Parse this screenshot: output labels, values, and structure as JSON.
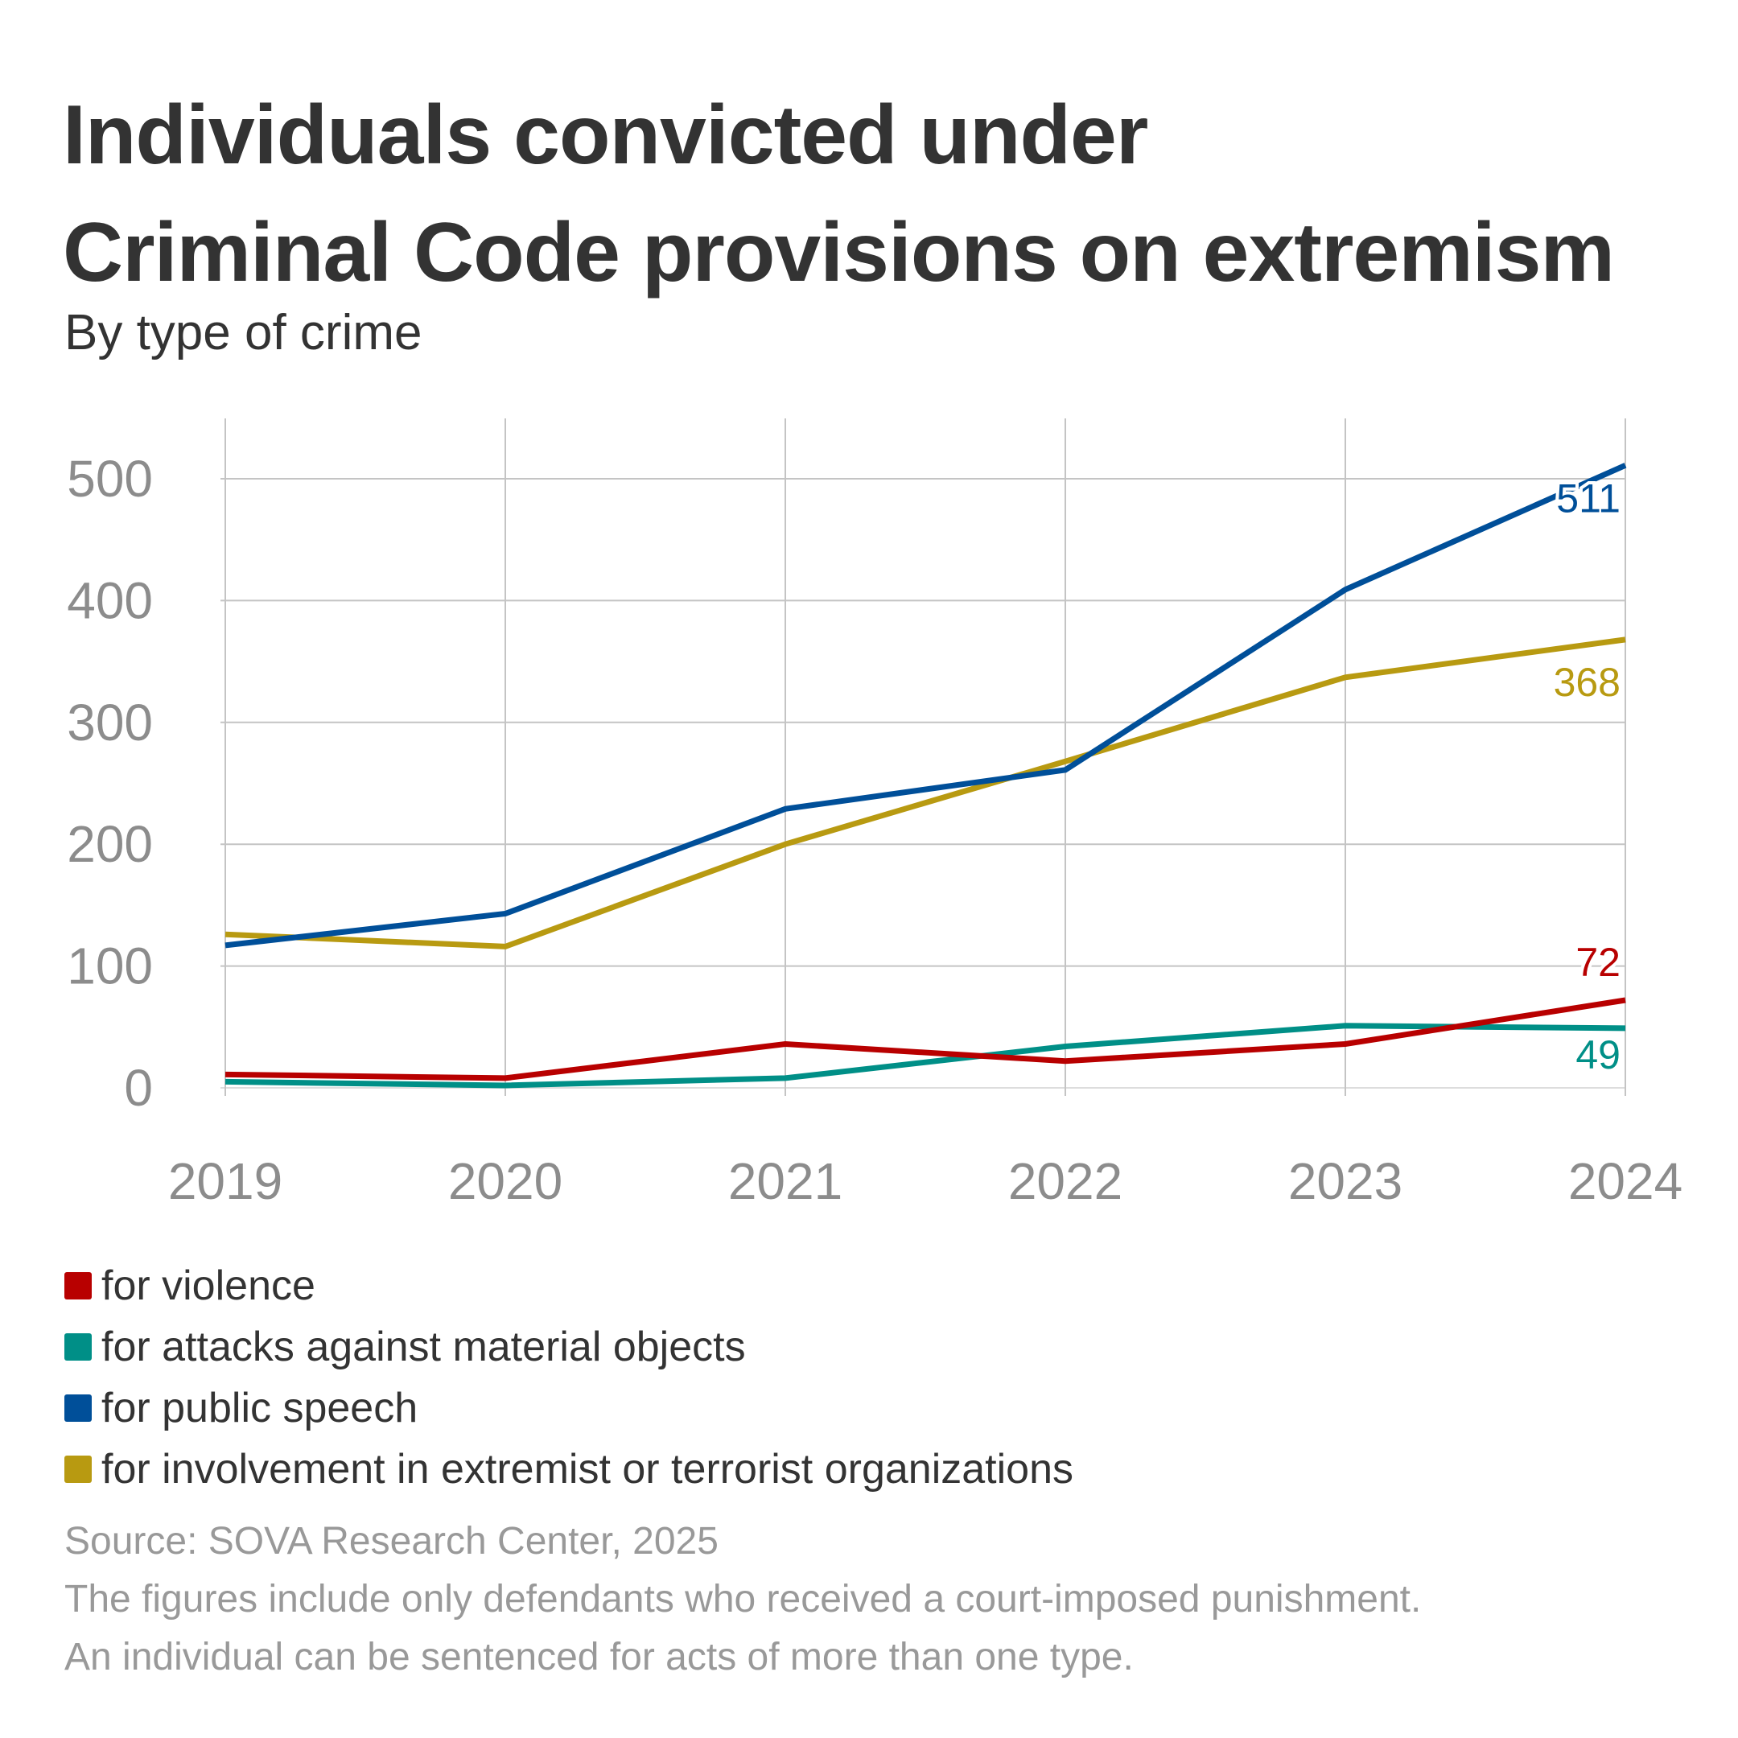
{
  "header": {
    "title_line1": "Individuals convicted under",
    "title_line2": "Criminal Code provisions on extremism",
    "subtitle": "By type of crime"
  },
  "legend": [
    {
      "label": "for violence",
      "color": "#b80000"
    },
    {
      "label": "for attacks against material objects",
      "color": "#008f87"
    },
    {
      "label": "for public speech",
      "color": "#004f99"
    },
    {
      "label": "for involvement in extremist or terrorist organizations",
      "color": "#b89a11"
    }
  ],
  "footer": {
    "source": "Source: SOVA Research Center, 2025",
    "note1": "The figures include only defendants who received a court-imposed punishment.",
    "note2": "An individual can be sentenced for acts of more than one type."
  },
  "chart_data": {
    "type": "line",
    "title": "Individuals convicted under Criminal Code provisions on extremism",
    "subtitle": "By type of crime",
    "xlabel": "",
    "ylabel": "",
    "x": [
      "2019",
      "2020",
      "2021",
      "2022",
      "2023",
      "2024"
    ],
    "ylim": [
      0,
      550
    ],
    "yticks": [
      0,
      100,
      200,
      300,
      400,
      500
    ],
    "grid": true,
    "legend_position": "bottom",
    "series": [
      {
        "name": "for violence",
        "color": "#b80000",
        "values": [
          11,
          8,
          36,
          22,
          36,
          72
        ],
        "end_label": "72"
      },
      {
        "name": "for attacks against material objects",
        "color": "#008f87",
        "values": [
          5,
          2,
          8,
          34,
          51,
          49
        ],
        "end_label": "49"
      },
      {
        "name": "for public speech",
        "color": "#004f99",
        "values": [
          117,
          143,
          229,
          261,
          409,
          511
        ],
        "end_label": "511"
      },
      {
        "name": "for involvement in extremist or terrorist organizations",
        "color": "#b89a11",
        "values": [
          126,
          116,
          200,
          268,
          337,
          368
        ],
        "end_label": "368"
      }
    ],
    "source": "SOVA Research Center, 2025"
  }
}
